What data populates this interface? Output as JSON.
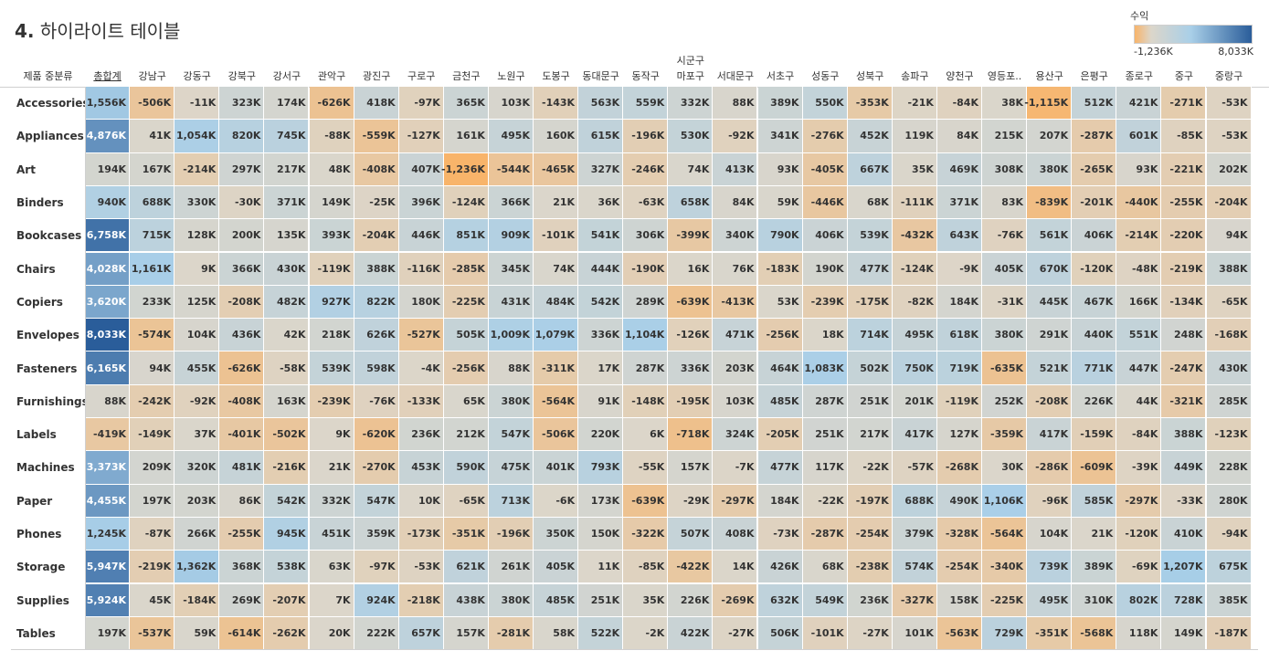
{
  "title": {
    "number": "4.",
    "text": "하이라이트 테이블"
  },
  "legend": {
    "title": "수익",
    "min_label": "-1,236K",
    "max_label": "8,033K",
    "min": -1236,
    "mid": 0,
    "max": 8033,
    "color_low": "#f8b46a",
    "color_mid": "#dcd6ca",
    "color_high": "#2a5d9a"
  },
  "chart_data": {
    "type": "heatmap",
    "column_group_label": "시군구",
    "row_header_label": "제품 중분류",
    "columns": [
      "총합계",
      "강남구",
      "강동구",
      "강북구",
      "강서구",
      "관악구",
      "광진구",
      "구로구",
      "금천구",
      "노원구",
      "도봉구",
      "동대문구",
      "동작구",
      "마포구",
      "서대문구",
      "서초구",
      "성동구",
      "성북구",
      "송파구",
      "양천구",
      "영등포..",
      "용산구",
      "은평구",
      "종로구",
      "중구",
      "중랑구"
    ],
    "rows": [
      "Accessories",
      "Appliances",
      "Art",
      "Binders",
      "Bookcases",
      "Chairs",
      "Copiers",
      "Envelopes",
      "Fasteners",
      "Furnishings",
      "Labels",
      "Machines",
      "Paper",
      "Phones",
      "Storage",
      "Supplies",
      "Tables"
    ],
    "labels": [
      [
        "1,556K",
        "-506K",
        "-11K",
        "323K",
        "174K",
        "-626K",
        "418K",
        "-97K",
        "365K",
        "103K",
        "-143K",
        "563K",
        "559K",
        "332K",
        "88K",
        "389K",
        "550K",
        "-353K",
        "-21K",
        "-84K",
        "38K",
        "-1,115K",
        "512K",
        "421K",
        "-271K",
        "-53K"
      ],
      [
        "4,876K",
        "41K",
        "1,054K",
        "820K",
        "745K",
        "-88K",
        "-559K",
        "-127K",
        "161K",
        "495K",
        "160K",
        "615K",
        "-196K",
        "530K",
        "-92K",
        "341K",
        "-276K",
        "452K",
        "119K",
        "84K",
        "215K",
        "207K",
        "-287K",
        "601K",
        "-85K",
        "-53K"
      ],
      [
        "194K",
        "167K",
        "-214K",
        "297K",
        "217K",
        "48K",
        "-408K",
        "407K",
        "-1,236K",
        "-544K",
        "-465K",
        "327K",
        "-246K",
        "74K",
        "413K",
        "93K",
        "-405K",
        "667K",
        "35K",
        "469K",
        "308K",
        "380K",
        "-265K",
        "93K",
        "-221K",
        "202K"
      ],
      [
        "940K",
        "688K",
        "330K",
        "-30K",
        "371K",
        "149K",
        "-25K",
        "396K",
        "-124K",
        "366K",
        "21K",
        "36K",
        "-63K",
        "658K",
        "84K",
        "59K",
        "-446K",
        "68K",
        "-111K",
        "371K",
        "83K",
        "-839K",
        "-201K",
        "-440K",
        "-255K",
        "-204K"
      ],
      [
        "6,758K",
        "715K",
        "128K",
        "200K",
        "135K",
        "393K",
        "-204K",
        "446K",
        "851K",
        "909K",
        "-101K",
        "541K",
        "306K",
        "-399K",
        "340K",
        "790K",
        "406K",
        "539K",
        "-432K",
        "643K",
        "-76K",
        "561K",
        "406K",
        "-214K",
        "-220K",
        "94K"
      ],
      [
        "4,028K",
        "1,161K",
        "9K",
        "366K",
        "430K",
        "-119K",
        "388K",
        "-116K",
        "-285K",
        "345K",
        "74K",
        "444K",
        "-190K",
        "16K",
        "76K",
        "-183K",
        "190K",
        "477K",
        "-124K",
        "-9K",
        "405K",
        "670K",
        "-120K",
        "-48K",
        "-219K",
        "388K"
      ],
      [
        "3,620K",
        "233K",
        "125K",
        "-208K",
        "482K",
        "927K",
        "822K",
        "180K",
        "-225K",
        "431K",
        "484K",
        "542K",
        "289K",
        "-639K",
        "-413K",
        "53K",
        "-239K",
        "-175K",
        "-82K",
        "184K",
        "-31K",
        "445K",
        "467K",
        "166K",
        "-134K",
        "-65K"
      ],
      [
        "8,033K",
        "-574K",
        "104K",
        "436K",
        "42K",
        "218K",
        "626K",
        "-527K",
        "505K",
        "1,009K",
        "1,079K",
        "336K",
        "1,104K",
        "-126K",
        "471K",
        "-256K",
        "18K",
        "714K",
        "495K",
        "618K",
        "380K",
        "291K",
        "440K",
        "551K",
        "248K",
        "-168K"
      ],
      [
        "6,165K",
        "94K",
        "455K",
        "-626K",
        "-58K",
        "539K",
        "598K",
        "-4K",
        "-256K",
        "88K",
        "-311K",
        "17K",
        "287K",
        "336K",
        "203K",
        "464K",
        "1,083K",
        "502K",
        "750K",
        "719K",
        "-635K",
        "521K",
        "771K",
        "447K",
        "-247K",
        "430K"
      ],
      [
        "88K",
        "-242K",
        "-92K",
        "-408K",
        "163K",
        "-239K",
        "-76K",
        "-133K",
        "65K",
        "380K",
        "-564K",
        "91K",
        "-148K",
        "-195K",
        "103K",
        "485K",
        "287K",
        "251K",
        "201K",
        "-119K",
        "252K",
        "-208K",
        "226K",
        "44K",
        "-321K",
        "285K"
      ],
      [
        "-419K",
        "-149K",
        "37K",
        "-401K",
        "-502K",
        "9K",
        "-620K",
        "236K",
        "212K",
        "547K",
        "-506K",
        "220K",
        "6K",
        "-718K",
        "324K",
        "-205K",
        "251K",
        "217K",
        "417K",
        "127K",
        "-359K",
        "417K",
        "-159K",
        "-84K",
        "388K",
        "-123K"
      ],
      [
        "3,373K",
        "209K",
        "320K",
        "481K",
        "-216K",
        "21K",
        "-270K",
        "453K",
        "590K",
        "475K",
        "401K",
        "793K",
        "-55K",
        "157K",
        "-7K",
        "477K",
        "117K",
        "-22K",
        "-57K",
        "-268K",
        "30K",
        "-286K",
        "-609K",
        "-39K",
        "449K",
        "228K"
      ],
      [
        "4,455K",
        "197K",
        "203K",
        "86K",
        "542K",
        "332K",
        "547K",
        "10K",
        "-65K",
        "713K",
        "-6K",
        "173K",
        "-639K",
        "-29K",
        "-297K",
        "184K",
        "-22K",
        "-197K",
        "688K",
        "490K",
        "1,106K",
        "-96K",
        "585K",
        "-297K",
        "-33K",
        "280K"
      ],
      [
        "1,245K",
        "-87K",
        "266K",
        "-255K",
        "945K",
        "451K",
        "359K",
        "-173K",
        "-351K",
        "-196K",
        "350K",
        "150K",
        "-322K",
        "507K",
        "408K",
        "-73K",
        "-287K",
        "-254K",
        "379K",
        "-328K",
        "-564K",
        "104K",
        "21K",
        "-120K",
        "410K",
        "-94K"
      ],
      [
        "5,947K",
        "-219K",
        "1,362K",
        "368K",
        "538K",
        "63K",
        "-97K",
        "-53K",
        "621K",
        "261K",
        "405K",
        "11K",
        "-85K",
        "-422K",
        "14K",
        "426K",
        "68K",
        "-238K",
        "574K",
        "-254K",
        "-340K",
        "739K",
        "389K",
        "-69K",
        "1,207K",
        "675K"
      ],
      [
        "5,924K",
        "45K",
        "-184K",
        "269K",
        "-207K",
        "7K",
        "924K",
        "-218K",
        "438K",
        "380K",
        "485K",
        "251K",
        "35K",
        "226K",
        "-269K",
        "632K",
        "549K",
        "236K",
        "-327K",
        "158K",
        "-225K",
        "495K",
        "310K",
        "802K",
        "728K",
        "385K"
      ],
      [
        "197K",
        "-537K",
        "59K",
        "-614K",
        "-262K",
        "20K",
        "222K",
        "657K",
        "157K",
        "-281K",
        "58K",
        "522K",
        "-2K",
        "422K",
        "-27K",
        "506K",
        "-101K",
        "-27K",
        "101K",
        "-563K",
        "729K",
        "-351K",
        "-568K",
        "118K",
        "149K",
        "-187K"
      ]
    ]
  }
}
